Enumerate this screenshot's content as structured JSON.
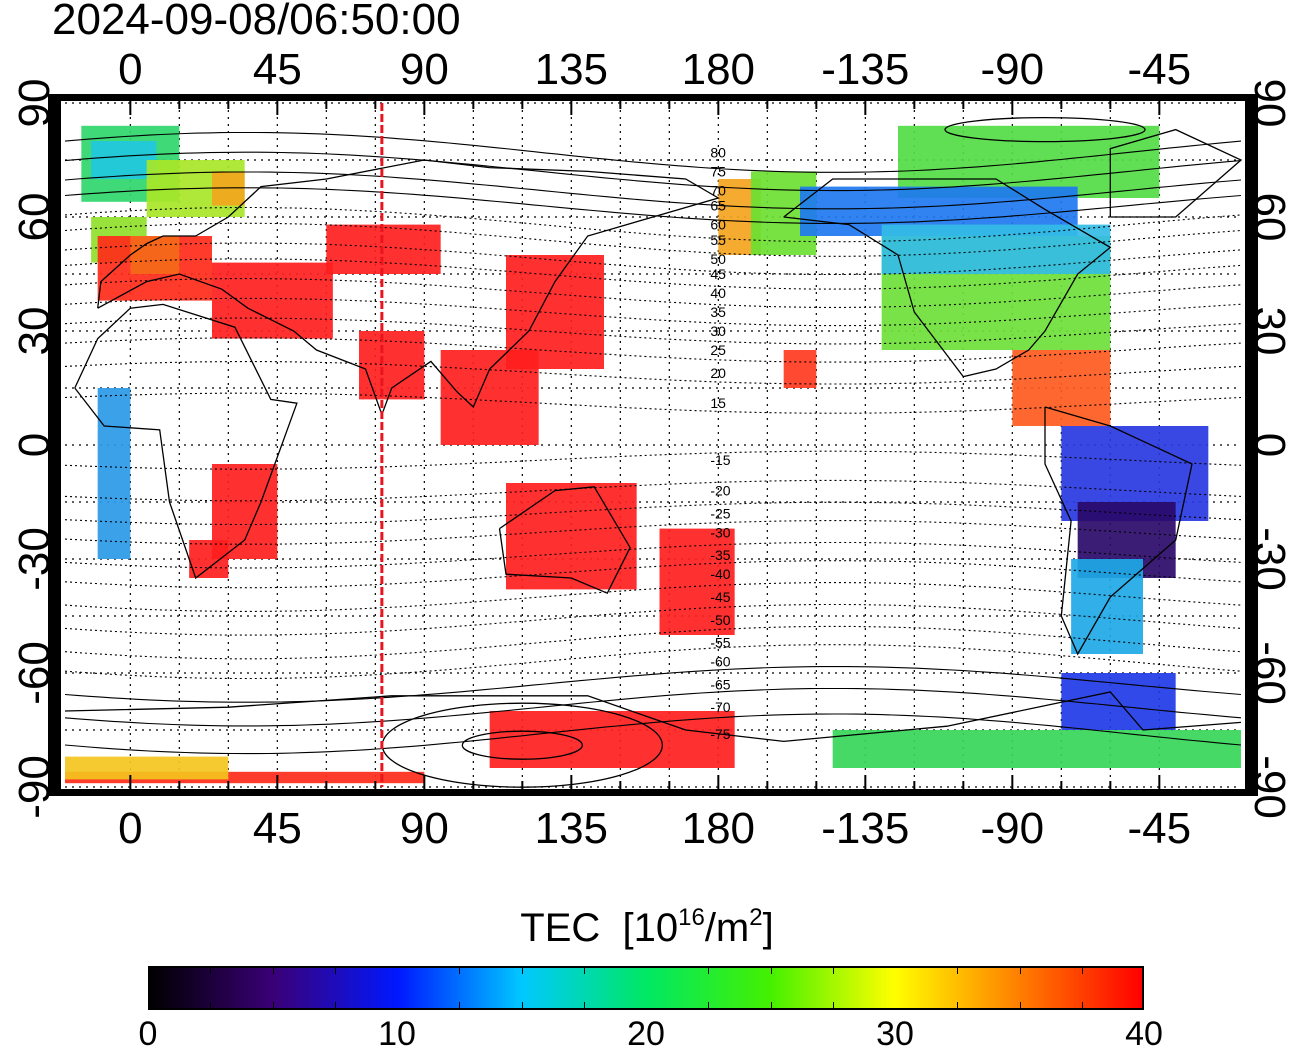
{
  "timestamp": "2024-09-08/06:50:00",
  "map": {
    "projection": "equirectangular",
    "lon_range": [
      -20,
      340
    ],
    "lat_range": [
      -90,
      90
    ],
    "top_tick_labels": [
      "0",
      "45",
      "90",
      "135",
      "180",
      "-135",
      "-90",
      "-45"
    ],
    "bottom_tick_labels": [
      "0",
      "45",
      "90",
      "135",
      "180",
      "-135",
      "-90",
      "-45"
    ],
    "left_tick_labels": [
      "90",
      "60",
      "30",
      "0",
      "-30",
      "-60",
      "-90"
    ],
    "right_tick_labels": [
      "90",
      "60",
      "30",
      "0",
      "-30",
      "-60",
      "-90"
    ],
    "terminator_lon": 77,
    "terminator_color": "#e8141e",
    "contour_label_lon": 180,
    "contour_labels": [
      {
        "text": "80",
        "lat": 77
      },
      {
        "text": "75",
        "lat": 72
      },
      {
        "text": "70",
        "lat": 67
      },
      {
        "text": "65",
        "lat": 63
      },
      {
        "text": "60",
        "lat": 58
      },
      {
        "text": "55",
        "lat": 54
      },
      {
        "text": "50",
        "lat": 49
      },
      {
        "text": "45",
        "lat": 45
      },
      {
        "text": "40",
        "lat": 40
      },
      {
        "text": "35",
        "lat": 35
      },
      {
        "text": "30",
        "lat": 30
      },
      {
        "text": "25",
        "lat": 25
      },
      {
        "text": "20",
        "lat": 19
      },
      {
        "text": "15",
        "lat": 11
      },
      {
        "text": "-15",
        "lat": -4
      },
      {
        "text": "-20",
        "lat": -12
      },
      {
        "text": "-25",
        "lat": -18
      },
      {
        "text": "-30",
        "lat": -23
      },
      {
        "text": "-35",
        "lat": -29
      },
      {
        "text": "-40",
        "lat": -34
      },
      {
        "text": "-45",
        "lat": -40
      },
      {
        "text": "-50",
        "lat": -46
      },
      {
        "text": "-55",
        "lat": -52
      },
      {
        "text": "-60",
        "lat": -57
      },
      {
        "text": "-65",
        "lat": -63
      },
      {
        "text": "-70",
        "lat": -69
      },
      {
        "text": "-75",
        "lat": -76
      }
    ],
    "tec_regions": [
      {
        "name": "north-atlantic",
        "lon": [
          -15,
          15
        ],
        "lat": [
          64,
          84
        ],
        "color": "#2fd66b"
      },
      {
        "name": "greenland-sea-cyan",
        "lon": [
          -12,
          8
        ],
        "lat": [
          70,
          80
        ],
        "color": "#22c8e0"
      },
      {
        "name": "norway",
        "lon": [
          5,
          35
        ],
        "lat": [
          60,
          75
        ],
        "color": "#a8e628"
      },
      {
        "name": "scandinavia-orange",
        "lon": [
          25,
          35
        ],
        "lat": [
          63,
          72
        ],
        "color": "#f2a51e"
      },
      {
        "name": "british-isles",
        "lon": [
          -12,
          5
        ],
        "lat": [
          48,
          60
        ],
        "color": "#8fe02a"
      },
      {
        "name": "western-europe",
        "lon": [
          -10,
          25
        ],
        "lat": [
          38,
          55
        ],
        "color": "#ff2a1a"
      },
      {
        "name": "central-europe-orange",
        "lon": [
          0,
          15
        ],
        "lat": [
          45,
          55
        ],
        "color": "#f46a1a"
      },
      {
        "name": "middle-east",
        "lon": [
          25,
          62
        ],
        "lat": [
          28,
          48
        ],
        "color": "#ff1e1e"
      },
      {
        "name": "russia-patches",
        "lon": [
          60,
          95
        ],
        "lat": [
          45,
          58
        ],
        "color": "#ff1e1e"
      },
      {
        "name": "india",
        "lon": [
          70,
          90
        ],
        "lat": [
          12,
          30
        ],
        "color": "#ff1e1e"
      },
      {
        "name": "east-asia",
        "lon": [
          115,
          145
        ],
        "lat": [
          20,
          50
        ],
        "color": "#ff1e1e"
      },
      {
        "name": "southeast-asia",
        "lon": [
          95,
          125
        ],
        "lat": [
          0,
          25
        ],
        "color": "#ff1e1e"
      },
      {
        "name": "east-africa",
        "lon": [
          25,
          45
        ],
        "lat": [
          -30,
          -5
        ],
        "color": "#ff1e1e"
      },
      {
        "name": "southern-africa",
        "lon": [
          18,
          30
        ],
        "lat": [
          -35,
          -25
        ],
        "color": "#ff1e1e"
      },
      {
        "name": "australia-patches",
        "lon": [
          115,
          155
        ],
        "lat": [
          -38,
          -10
        ],
        "color": "#ff1e1e"
      },
      {
        "name": "new-zealand",
        "lon": [
          162,
          185
        ],
        "lat": [
          -50,
          -22
        ],
        "color": "#ff1e1e"
      },
      {
        "name": "east-siberia",
        "lon": [
          180,
          193
        ],
        "lat": [
          50,
          70
        ],
        "color": "#f4a41e"
      },
      {
        "name": "alaska",
        "lon": [
          190,
          210
        ],
        "lat": [
          50,
          72
        ],
        "color": "#6be032"
      },
      {
        "name": "canada-arctic",
        "lon": [
          235,
          315
        ],
        "lat": [
          65,
          84
        ],
        "color": "#52dc46"
      },
      {
        "name": "north-canada-blue",
        "lon": [
          205,
          290
        ],
        "lat": [
          55,
          68
        ],
        "color": "#1e78f0"
      },
      {
        "name": "usa",
        "lon": [
          230,
          300
        ],
        "lat": [
          25,
          55
        ],
        "color": "#6ee03a"
      },
      {
        "name": "usa-north-cyan",
        "lon": [
          230,
          300
        ],
        "lat": [
          45,
          58
        ],
        "color": "#34bce6"
      },
      {
        "name": "caribbean",
        "lon": [
          270,
          300
        ],
        "lat": [
          5,
          25
        ],
        "color": "#ff5a1e"
      },
      {
        "name": "hawaii",
        "lon": [
          200,
          210
        ],
        "lat": [
          15,
          25
        ],
        "color": "#ff3a1e"
      },
      {
        "name": "brazil-north",
        "lon": [
          285,
          330
        ],
        "lat": [
          -20,
          5
        ],
        "color": "#2838e0"
      },
      {
        "name": "brazil-south",
        "lon": [
          290,
          320
        ],
        "lat": [
          -35,
          -15
        ],
        "color": "#2a0a6a"
      },
      {
        "name": "argentina",
        "lon": [
          288,
          310
        ],
        "lat": [
          -55,
          -30
        ],
        "color": "#1ea8e6"
      },
      {
        "name": "drake-passage",
        "lon": [
          285,
          320
        ],
        "lat": [
          -75,
          -60
        ],
        "color": "#1e3ae6"
      },
      {
        "name": "southern-ocean-east",
        "lon": [
          215,
          340
        ],
        "lat": [
          -85,
          -75
        ],
        "color": "#36d658"
      },
      {
        "name": "antarctica-pacific",
        "lon": [
          110,
          185
        ],
        "lat": [
          -85,
          -70
        ],
        "color": "#ff1e1e"
      },
      {
        "name": "antarctica-bottom",
        "lon": [
          -20,
          90
        ],
        "lat": [
          -89,
          -86
        ],
        "color": "#ff2a1a"
      },
      {
        "name": "antarctica-atlantic",
        "lon": [
          -20,
          30
        ],
        "lat": [
          -88,
          -82
        ],
        "color": "#f4c41e"
      },
      {
        "name": "west-africa",
        "lon": [
          -10,
          0
        ],
        "lat": [
          -30,
          15
        ],
        "color": "#2a9ae8"
      }
    ]
  },
  "colorbar": {
    "title": "TEC",
    "unit_prefix": "[10",
    "unit_exp": "16",
    "unit_mid": "/m",
    "unit_exp2": "2",
    "unit_suffix": "]",
    "range": [
      0,
      40
    ],
    "tick_labels": [
      "0",
      "10",
      "20",
      "30",
      "40"
    ],
    "colors": [
      "#000000",
      "#3a0078",
      "#0018ff",
      "#00c8ff",
      "#00e864",
      "#44f000",
      "#ffff00",
      "#ff8000",
      "#ff0000"
    ]
  }
}
